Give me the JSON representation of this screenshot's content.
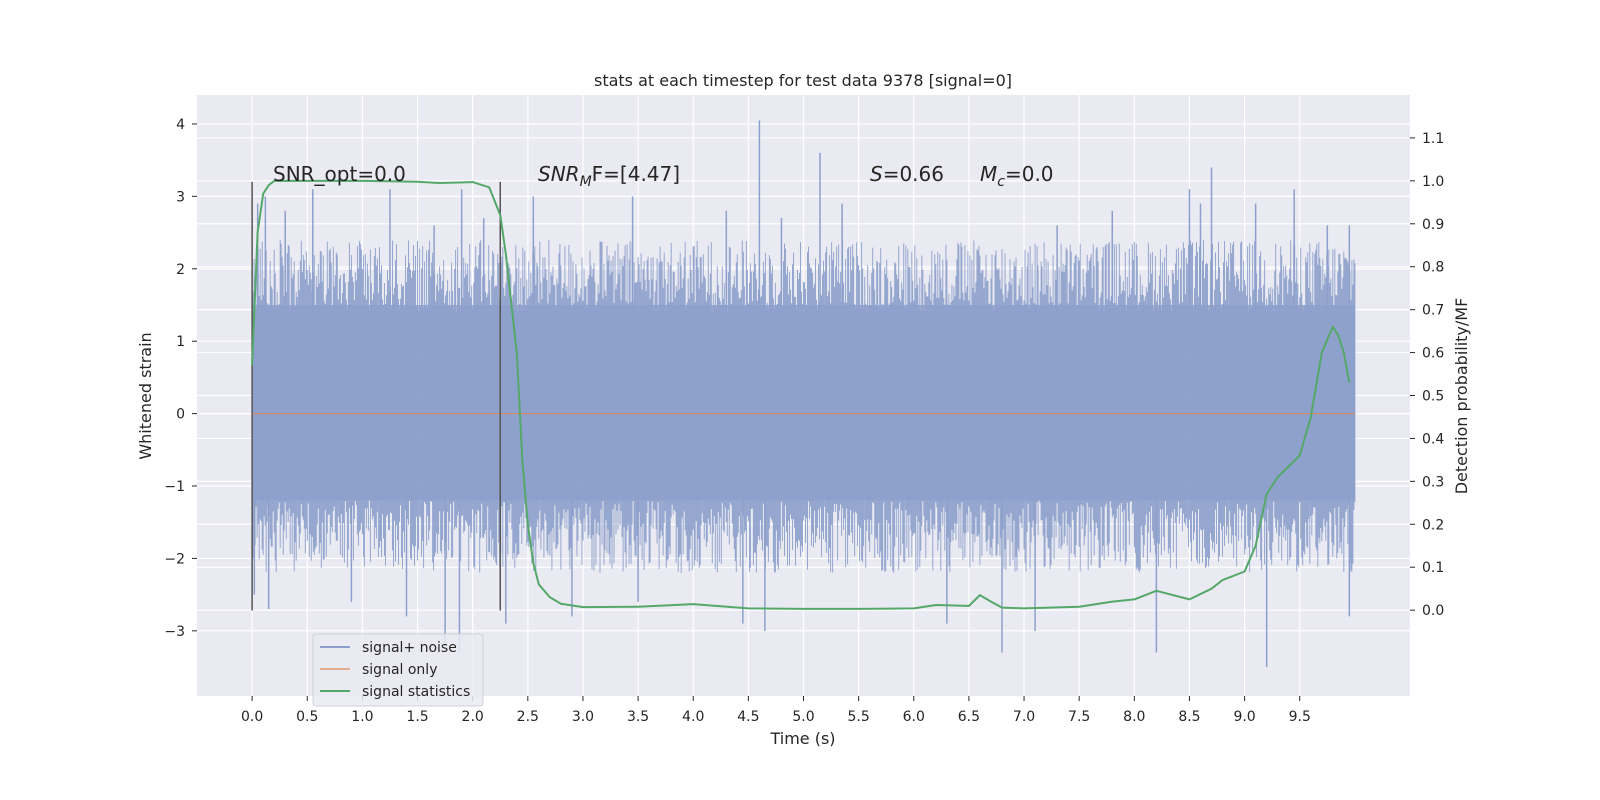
{
  "chart_data": {
    "type": "line",
    "title": "stats at each timestep for test data 9378 [signal=0]",
    "xlabel": "Time (s)",
    "ylabel": "Whitened strain",
    "ylabel_right": "Detection probability/MF",
    "xlim": [
      -0.5,
      10.5
    ],
    "ylim": [
      -3.9,
      4.4
    ],
    "ylim_right": [
      -0.2,
      1.2
    ],
    "xticks": [
      "0.0",
      "0.5",
      "1.0",
      "1.5",
      "2.0",
      "2.5",
      "3.0",
      "3.5",
      "4.0",
      "4.5",
      "5.0",
      "5.5",
      "6.0",
      "6.5",
      "7.0",
      "7.5",
      "8.0",
      "8.5",
      "9.0",
      "9.5"
    ],
    "yticks_left": [
      "−3",
      "−2",
      "−1",
      "0",
      "1",
      "2",
      "3",
      "4"
    ],
    "yticks_right": [
      "0.0",
      "0.1",
      "0.2",
      "0.3",
      "0.4",
      "0.5",
      "0.6",
      "0.7",
      "0.8",
      "0.9",
      "1.0",
      "1.1"
    ],
    "grid": true,
    "legend_position": "lower-left",
    "annotations": {
      "snr_opt": "SNR_opt=0.0",
      "snr_mf_prefix": "SNR",
      "snr_mf_sub": "M",
      "snr_mf_suffix": "F=[4.47]",
      "s_prefix": "S",
      "s_suffix": "=0.66",
      "mc_prefix": "M",
      "mc_sub": "c",
      "mc_suffix": "=0.0"
    },
    "window_markers_x": [
      0.0,
      2.25
    ],
    "series": [
      {
        "name": "signal+ noise",
        "color": "#8da0cb",
        "axis": "left",
        "band": {
          "x_start": 0.0,
          "x_end": 10.0,
          "core_min": -1.2,
          "core_max": 1.5
        },
        "spikes": [
          [
            0.02,
            -2.5
          ],
          [
            0.05,
            2.9
          ],
          [
            0.12,
            3.0
          ],
          [
            0.15,
            -2.7
          ],
          [
            0.3,
            2.8
          ],
          [
            0.55,
            3.1
          ],
          [
            0.9,
            -2.6
          ],
          [
            1.25,
            3.1
          ],
          [
            1.4,
            -2.8
          ],
          [
            1.65,
            2.6
          ],
          [
            1.75,
            -3.2
          ],
          [
            1.88,
            -3.3
          ],
          [
            1.9,
            3.1
          ],
          [
            2.1,
            2.7
          ],
          [
            2.3,
            -2.9
          ],
          [
            2.55,
            3.0
          ],
          [
            2.9,
            -2.8
          ],
          [
            3.45,
            3.0
          ],
          [
            3.5,
            -2.6
          ],
          [
            4.3,
            2.8
          ],
          [
            4.45,
            -2.9
          ],
          [
            4.6,
            4.05
          ],
          [
            4.65,
            -3.0
          ],
          [
            4.8,
            2.7
          ],
          [
            5.15,
            3.6
          ],
          [
            5.35,
            2.9
          ],
          [
            6.3,
            -2.9
          ],
          [
            6.8,
            -3.3
          ],
          [
            7.1,
            -3.0
          ],
          [
            7.3,
            2.6
          ],
          [
            7.8,
            2.8
          ],
          [
            8.2,
            -3.3
          ],
          [
            8.5,
            3.1
          ],
          [
            8.6,
            2.9
          ],
          [
            8.7,
            3.4
          ],
          [
            9.2,
            -3.5
          ],
          [
            9.1,
            2.9
          ],
          [
            9.45,
            3.1
          ],
          [
            9.75,
            2.6
          ],
          [
            9.95,
            -2.8
          ],
          [
            9.95,
            2.6
          ]
        ]
      },
      {
        "name": "signal only",
        "color": "#dd8452",
        "axis": "left",
        "x": [
          0.0,
          10.0
        ],
        "y": [
          0.0,
          0.0
        ]
      },
      {
        "name": "signal statistics",
        "color": "#55a868",
        "axis": "right",
        "x": [
          0.0,
          0.05,
          0.1,
          0.15,
          0.2,
          0.3,
          0.5,
          1.0,
          1.5,
          1.7,
          2.0,
          2.15,
          2.25,
          2.3,
          2.4,
          2.45,
          2.5,
          2.55,
          2.6,
          2.7,
          2.8,
          3.0,
          3.5,
          4.0,
          4.5,
          5.0,
          5.5,
          6.0,
          6.2,
          6.5,
          6.6,
          6.7,
          6.8,
          7.0,
          7.5,
          7.8,
          8.0,
          8.2,
          8.5,
          8.7,
          8.8,
          9.0,
          9.1,
          9.2,
          9.3,
          9.5,
          9.6,
          9.7,
          9.8,
          9.85,
          9.9,
          9.95
        ],
        "y": [
          0.57,
          0.88,
          0.97,
          0.99,
          1.0,
          1.0,
          1.0,
          1.0,
          0.998,
          0.995,
          0.997,
          0.985,
          0.92,
          0.83,
          0.6,
          0.35,
          0.2,
          0.11,
          0.06,
          0.03,
          0.015,
          0.007,
          0.008,
          0.014,
          0.004,
          0.003,
          0.003,
          0.004,
          0.012,
          0.01,
          0.035,
          0.02,
          0.006,
          0.004,
          0.008,
          0.02,
          0.025,
          0.045,
          0.025,
          0.05,
          0.07,
          0.09,
          0.15,
          0.27,
          0.31,
          0.36,
          0.45,
          0.6,
          0.66,
          0.64,
          0.6,
          0.53
        ]
      }
    ]
  }
}
